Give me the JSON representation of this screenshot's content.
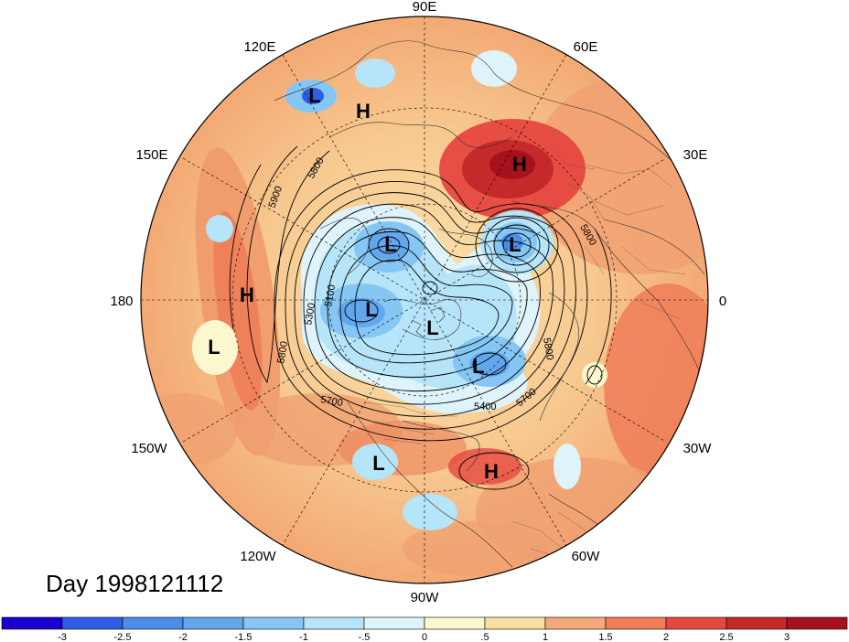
{
  "day_label": "Day 1998121112",
  "longitude_labels": {
    "90E": "90E",
    "60E": "60E",
    "30E": "30E",
    "0": "0",
    "30W": "30W",
    "60W": "60W",
    "90W": "90W",
    "120W": "120W",
    "150W": "150W",
    "180": "180",
    "150E": "150E",
    "120E": "120E"
  },
  "pressure_centers": [
    {
      "id": "L-siberia-east",
      "label": "L"
    },
    {
      "id": "H-asia-coast",
      "label": "H"
    },
    {
      "id": "H-scandinavia",
      "label": "H"
    },
    {
      "id": "L-arctic-siberia",
      "label": "L"
    },
    {
      "id": "L-europe",
      "label": "L"
    },
    {
      "id": "H-pacific",
      "label": "H"
    },
    {
      "id": "L-alaska",
      "label": "L"
    },
    {
      "id": "L-pacific-south",
      "label": "L"
    },
    {
      "id": "L-canada",
      "label": "L"
    },
    {
      "id": "L-labrador",
      "label": "L"
    },
    {
      "id": "L-mexico",
      "label": "L"
    },
    {
      "id": "H-atlantic",
      "label": "H"
    }
  ],
  "contour_labels": [
    "5900",
    "5800",
    "5100",
    "5300",
    "5800",
    "5700",
    "5400",
    "5700",
    "5800",
    "5800"
  ],
  "colorbar": {
    "ticks": [
      "-3",
      "-2.5",
      "-2",
      "-1.5",
      "-1",
      "-.5",
      "0",
      ".5",
      "1",
      "1.5",
      "2",
      "2.5",
      "3"
    ],
    "colors": [
      "#1c00d2",
      "#2f5ee6",
      "#4a8ee8",
      "#62a7ee",
      "#85c6f4",
      "#b6e4f8",
      "#dff3fa",
      "#fdf7cf",
      "#f8dfa0",
      "#f4a978",
      "#ee7d58",
      "#e6473f",
      "#c42a2a",
      "#a5121e"
    ]
  }
}
